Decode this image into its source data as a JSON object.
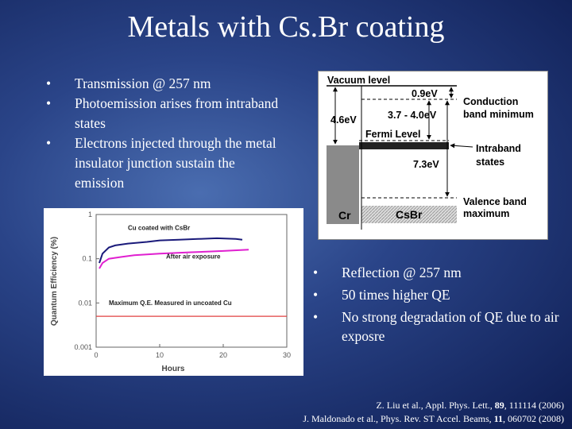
{
  "title": "Metals with Cs.Br coating",
  "bullets_left": [
    "Transmission @ 257 nm",
    "Photoemission arises from intraband states",
    "Electrons injected through the metal insulator junction sustain the emission"
  ],
  "diagram": {
    "vacuum_level": "Vacuum level",
    "gap_top": "0.9eV",
    "affinity": "3.7 - 4.0eV",
    "work_function": "4.6eV",
    "fermi_level": "Fermi Level",
    "band_gap": "7.3eV",
    "conduction_band": [
      "Conduction",
      "band minimum"
    ],
    "intraband": [
      "Intraband",
      "states"
    ],
    "valence_band": [
      "Valence band",
      "maximum"
    ],
    "metal": "Cr",
    "insulator": "CsBr"
  },
  "chart": {
    "type": "line",
    "xlabel": "Hours",
    "ylabel": "Quantum Efficiency (%)",
    "log_scale": true,
    "xlim": [
      0,
      30
    ],
    "xticks": [
      0,
      10,
      20,
      30
    ],
    "ylim": [
      0.001,
      1
    ],
    "yticks": [
      1,
      0.1,
      0.01,
      0.001
    ],
    "series": [
      {
        "name": "Cu coated with CsBr",
        "color": "#1a1a7a",
        "x": [
          0.5,
          1,
          2,
          3,
          5,
          8,
          10,
          13,
          16,
          19,
          22,
          23
        ],
        "values": [
          0.08,
          0.13,
          0.18,
          0.2,
          0.22,
          0.24,
          0.26,
          0.27,
          0.28,
          0.29,
          0.28,
          0.27
        ]
      },
      {
        "name": "After air exposure",
        "color": "#e020d0",
        "x": [
          0.5,
          1,
          2,
          4,
          6,
          10,
          15,
          20,
          24
        ],
        "values": [
          0.06,
          0.08,
          0.1,
          0.11,
          0.12,
          0.13,
          0.14,
          0.15,
          0.16
        ]
      },
      {
        "name": "Maximum Q.E. Measured in uncoated Cu",
        "color": "#e04040",
        "x": [
          0,
          30
        ],
        "values": [
          0.005,
          0.005
        ]
      }
    ]
  },
  "bullets_right": [
    "Reflection @ 257 nm",
    "50 times higher QE",
    "No strong degradation of QE due to air exposre"
  ],
  "references": [
    [
      "Z. Liu et al., Appl. Phys. Lett., ",
      "89",
      ", 111114 (2006)"
    ],
    [
      "J. Maldonado et al., Phys. Rev. ST Accel. Beams, ",
      "11",
      ", 060702 (2008)"
    ]
  ]
}
